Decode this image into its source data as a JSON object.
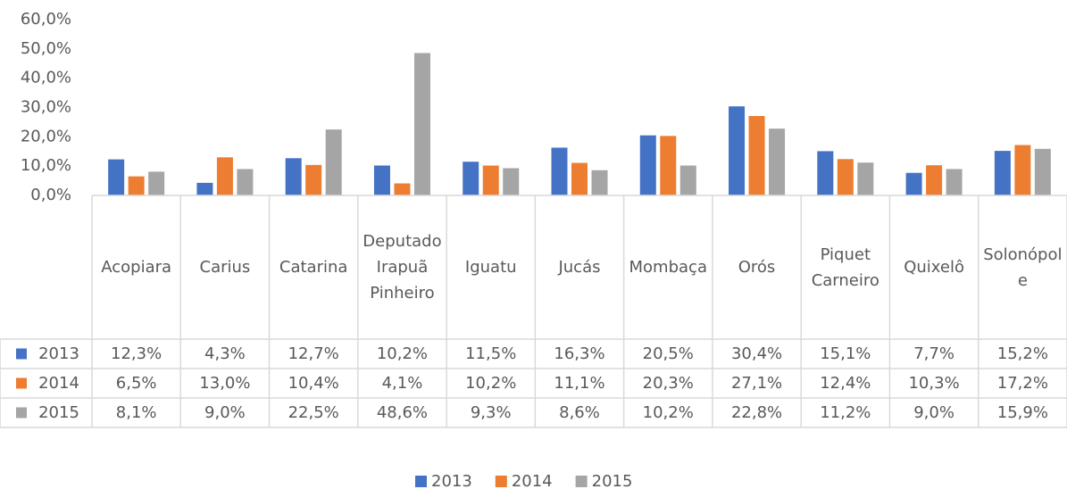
{
  "chart_data": {
    "type": "bar",
    "categories": [
      "Acopiara",
      "Carius",
      "Catarina",
      "Deputado Irapuã Pinheiro",
      "Iguatu",
      "Jucás",
      "Mombaça",
      "Orós",
      "Piquet Carneiro",
      "Quixelô",
      "Solonópole"
    ],
    "series": [
      {
        "name": "2013",
        "color": "#4472c4",
        "values": [
          12.3,
          4.3,
          12.7,
          10.2,
          11.5,
          16.3,
          20.5,
          30.4,
          15.1,
          7.7,
          15.2
        ],
        "value_labels": [
          "12,3%",
          "4,3%",
          "12,7%",
          "10,2%",
          "11,5%",
          "16,3%",
          "20,5%",
          "30,4%",
          "15,1%",
          "7,7%",
          "15,2%"
        ]
      },
      {
        "name": "2014",
        "color": "#ed7d31",
        "values": [
          6.5,
          13.0,
          10.4,
          4.1,
          10.2,
          11.1,
          20.3,
          27.1,
          12.4,
          10.3,
          17.2
        ],
        "value_labels": [
          "6,5%",
          "13,0%",
          "10,4%",
          "4,1%",
          "10,2%",
          "11,1%",
          "20,3%",
          "27,1%",
          "12,4%",
          "10,3%",
          "17,2%"
        ]
      },
      {
        "name": "2015",
        "color": "#a5a5a5",
        "values": [
          8.1,
          9.0,
          22.5,
          48.6,
          9.3,
          8.6,
          10.2,
          22.8,
          11.2,
          9.0,
          15.9
        ],
        "value_labels": [
          "8,1%",
          "9,0%",
          "22,5%",
          "48,6%",
          "9,3%",
          "8,6%",
          "10,2%",
          "22,8%",
          "11,2%",
          "9,0%",
          "15,9%"
        ]
      }
    ],
    "ylim": [
      0,
      60
    ],
    "yticks": [
      {
        "value": 0,
        "label": "0,0%"
      },
      {
        "value": 10,
        "label": "10,0%"
      },
      {
        "value": 20,
        "label": "20,0%"
      },
      {
        "value": 30,
        "label": "30,0%"
      },
      {
        "value": 40,
        "label": "40,0%"
      },
      {
        "value": 50,
        "label": "50,0%"
      },
      {
        "value": 60,
        "label": "60,0%"
      }
    ],
    "grid": false,
    "legend": "bottom"
  }
}
